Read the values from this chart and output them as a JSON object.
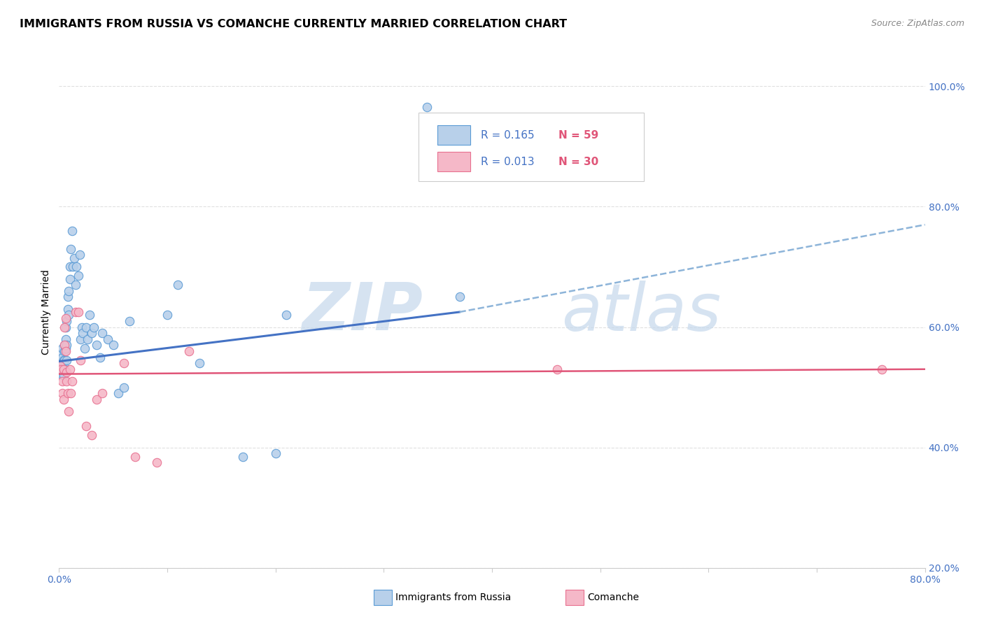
{
  "title": "IMMIGRANTS FROM RUSSIA VS COMANCHE CURRENTLY MARRIED CORRELATION CHART",
  "source": "Source: ZipAtlas.com",
  "ylabel": "Currently Married",
  "watermark_zip": "ZIP",
  "watermark_atlas": "atlas",
  "legend_label1": "Immigrants from Russia",
  "legend_label2": "Comanche",
  "R1": "0.165",
  "N1": "59",
  "R2": "0.013",
  "N2": "30",
  "color_blue_fill": "#b8d0ea",
  "color_blue_edge": "#5b9bd5",
  "color_pink_fill": "#f5b8c8",
  "color_pink_edge": "#e87090",
  "color_blue_line": "#4472c4",
  "color_pink_line": "#e05578",
  "color_dashed": "#8db4d9",
  "xlim": [
    0.0,
    0.8
  ],
  "ylim": [
    0.2,
    1.05
  ],
  "xticks": [
    0.0,
    0.1,
    0.2,
    0.3,
    0.4,
    0.5,
    0.6,
    0.7,
    0.8
  ],
  "yticks": [
    0.2,
    0.4,
    0.6,
    0.8,
    1.0
  ],
  "scatter_blue_x": [
    0.001,
    0.002,
    0.002,
    0.003,
    0.003,
    0.003,
    0.004,
    0.004,
    0.004,
    0.004,
    0.005,
    0.005,
    0.005,
    0.005,
    0.006,
    0.006,
    0.006,
    0.007,
    0.007,
    0.007,
    0.008,
    0.008,
    0.009,
    0.009,
    0.01,
    0.01,
    0.011,
    0.012,
    0.013,
    0.014,
    0.015,
    0.016,
    0.018,
    0.019,
    0.02,
    0.021,
    0.022,
    0.024,
    0.025,
    0.026,
    0.028,
    0.03,
    0.032,
    0.035,
    0.038,
    0.04,
    0.045,
    0.05,
    0.055,
    0.06,
    0.065,
    0.1,
    0.11,
    0.13,
    0.17,
    0.2,
    0.21,
    0.34,
    0.37
  ],
  "scatter_blue_y": [
    0.54,
    0.545,
    0.555,
    0.55,
    0.565,
    0.52,
    0.53,
    0.545,
    0.535,
    0.52,
    0.56,
    0.57,
    0.545,
    0.53,
    0.58,
    0.565,
    0.6,
    0.57,
    0.61,
    0.545,
    0.63,
    0.65,
    0.62,
    0.66,
    0.68,
    0.7,
    0.73,
    0.76,
    0.7,
    0.715,
    0.67,
    0.7,
    0.685,
    0.72,
    0.58,
    0.6,
    0.59,
    0.565,
    0.6,
    0.58,
    0.62,
    0.59,
    0.6,
    0.57,
    0.55,
    0.59,
    0.58,
    0.57,
    0.49,
    0.5,
    0.61,
    0.62,
    0.67,
    0.54,
    0.385,
    0.39,
    0.62,
    0.965,
    0.65
  ],
  "scatter_pink_x": [
    0.001,
    0.002,
    0.003,
    0.003,
    0.004,
    0.004,
    0.005,
    0.005,
    0.006,
    0.006,
    0.007,
    0.007,
    0.008,
    0.009,
    0.01,
    0.011,
    0.012,
    0.015,
    0.018,
    0.02,
    0.025,
    0.03,
    0.035,
    0.04,
    0.06,
    0.07,
    0.09,
    0.12,
    0.46,
    0.76
  ],
  "scatter_pink_y": [
    0.535,
    0.53,
    0.51,
    0.49,
    0.48,
    0.53,
    0.57,
    0.6,
    0.615,
    0.56,
    0.51,
    0.525,
    0.49,
    0.46,
    0.53,
    0.49,
    0.51,
    0.625,
    0.625,
    0.545,
    0.435,
    0.42,
    0.48,
    0.49,
    0.54,
    0.385,
    0.375,
    0.56,
    0.53,
    0.53
  ],
  "trendline_blue_x0": 0.0,
  "trendline_blue_x1": 0.37,
  "trendline_blue_y0": 0.543,
  "trendline_blue_y1": 0.625,
  "trendline_blue_dash_x0": 0.37,
  "trendline_blue_dash_x1": 0.8,
  "trendline_blue_dash_y0": 0.625,
  "trendline_blue_dash_y1": 0.77,
  "trendline_pink_x0": 0.0,
  "trendline_pink_x1": 0.8,
  "trendline_pink_y0": 0.522,
  "trendline_pink_y1": 0.53,
  "grid_color": "#e0e0e0",
  "grid_linestyle": "--",
  "background_color": "#ffffff",
  "title_fontsize": 11.5,
  "source_fontsize": 9,
  "tick_fontsize": 10,
  "ylabel_fontsize": 10,
  "watermark_fontsize_zip": 68,
  "watermark_fontsize_atlas": 68
}
